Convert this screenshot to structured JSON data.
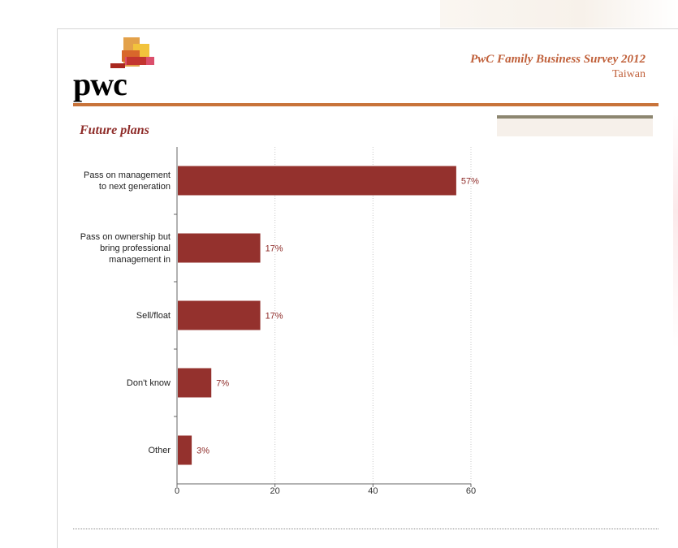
{
  "header": {
    "brand": "pwc",
    "survey_title": "PwC Family Business Survey 2012",
    "region": "Taiwan"
  },
  "colors": {
    "accent_rule": "#c8733a",
    "title_text": "#c0603a",
    "bar": "#94312d",
    "value_text": "#8f2d2a"
  },
  "chart_data": {
    "type": "bar",
    "orientation": "horizontal",
    "title": "Future plans",
    "categories": [
      "Pass on management\nto next generation",
      "Pass on ownership but\nbring professional\nmanagement in",
      "Sell/float",
      "Don't know",
      "Other"
    ],
    "values": [
      57,
      17,
      17,
      7,
      3
    ],
    "value_labels": [
      "57%",
      "17%",
      "17%",
      "7%",
      "3%"
    ],
    "xlim": [
      0,
      60
    ],
    "xticks": [
      0,
      20,
      40,
      60
    ],
    "grid": true,
    "legend": "none"
  }
}
